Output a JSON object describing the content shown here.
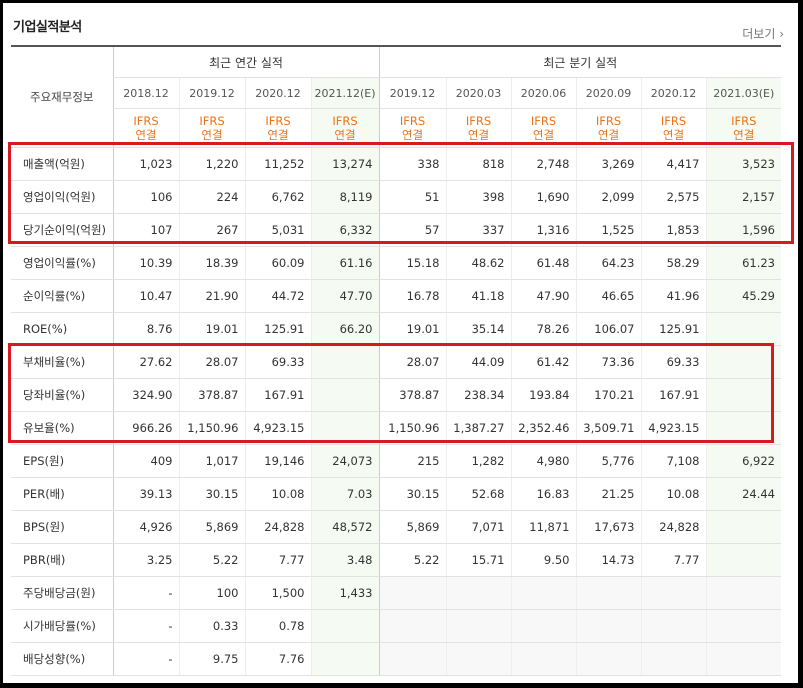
{
  "title": "기업실적분석",
  "more_label": "더보기",
  "header": {
    "label_col": "주요재무정보",
    "annual_group": "최근 연간 실적",
    "quarter_group": "최근 분기 실적",
    "periods": [
      "2018.12",
      "2019.12",
      "2020.12",
      "2021.12(E)",
      "2019.12",
      "2020.03",
      "2020.06",
      "2020.09",
      "2020.12",
      "2021.03(E)"
    ],
    "ifrs_line1": "IFRS",
    "ifrs_line2": "연결"
  },
  "rows": [
    {
      "label": "매출액(억원)",
      "values": [
        "1,023",
        "1,220",
        "11,252",
        "13,274",
        "338",
        "818",
        "2,748",
        "3,269",
        "4,417",
        "3,523"
      ]
    },
    {
      "label": "영업이익(억원)",
      "values": [
        "106",
        "224",
        "6,762",
        "8,119",
        "51",
        "398",
        "1,690",
        "2,099",
        "2,575",
        "2,157"
      ]
    },
    {
      "label": "당기순이익(억원)",
      "values": [
        "107",
        "267",
        "5,031",
        "6,332",
        "57",
        "337",
        "1,316",
        "1,525",
        "1,853",
        "1,596"
      ]
    },
    {
      "label": "영업이익률(%)",
      "values": [
        "10.39",
        "18.39",
        "60.09",
        "61.16",
        "15.18",
        "48.62",
        "61.48",
        "64.23",
        "58.29",
        "61.23"
      ]
    },
    {
      "label": "순이익률(%)",
      "values": [
        "10.47",
        "21.90",
        "44.72",
        "47.70",
        "16.78",
        "41.18",
        "47.90",
        "46.65",
        "41.96",
        "45.29"
      ]
    },
    {
      "label": "ROE(%)",
      "values": [
        "8.76",
        "19.01",
        "125.91",
        "66.20",
        "19.01",
        "35.14",
        "78.26",
        "106.07",
        "125.91",
        ""
      ]
    },
    {
      "label": "부채비율(%)",
      "values": [
        "27.62",
        "28.07",
        "69.33",
        "",
        "28.07",
        "44.09",
        "61.42",
        "73.36",
        "69.33",
        ""
      ]
    },
    {
      "label": "당좌비율(%)",
      "values": [
        "324.90",
        "378.87",
        "167.91",
        "",
        "378.87",
        "238.34",
        "193.84",
        "170.21",
        "167.91",
        ""
      ]
    },
    {
      "label": "유보율(%)",
      "values": [
        "966.26",
        "1,150.96",
        "4,923.15",
        "",
        "1,150.96",
        "1,387.27",
        "2,352.46",
        "3,509.71",
        "4,923.15",
        ""
      ]
    },
    {
      "label": "EPS(원)",
      "values": [
        "409",
        "1,017",
        "19,146",
        "24,073",
        "215",
        "1,282",
        "4,980",
        "5,776",
        "7,108",
        "6,922"
      ]
    },
    {
      "label": "PER(배)",
      "values": [
        "39.13",
        "30.15",
        "10.08",
        "7.03",
        "30.15",
        "52.68",
        "16.83",
        "21.25",
        "10.08",
        "24.44"
      ]
    },
    {
      "label": "BPS(원)",
      "values": [
        "4,926",
        "5,869",
        "24,828",
        "48,572",
        "5,869",
        "7,071",
        "11,871",
        "17,673",
        "24,828",
        ""
      ]
    },
    {
      "label": "PBR(배)",
      "values": [
        "3.25",
        "5.22",
        "7.77",
        "3.48",
        "5.22",
        "15.71",
        "9.50",
        "14.73",
        "7.77",
        ""
      ]
    },
    {
      "label": "주당배당금(원)",
      "values": [
        "-",
        "100",
        "1,500",
        "1,433",
        "",
        "",
        "",
        "",
        "",
        ""
      ]
    },
    {
      "label": "시가배당률(%)",
      "values": [
        "-",
        "0.33",
        "0.78",
        "",
        "",
        "",
        "",
        "",
        "",
        ""
      ]
    },
    {
      "label": "배당성향(%)",
      "values": [
        "-",
        "9.75",
        "7.76",
        "",
        "",
        "",
        "",
        "",
        "",
        ""
      ]
    }
  ],
  "colors": {
    "highlight_box": "#d71920",
    "ifrs_text": "#e8741b",
    "estimate_bg": "#f5fbf2"
  }
}
